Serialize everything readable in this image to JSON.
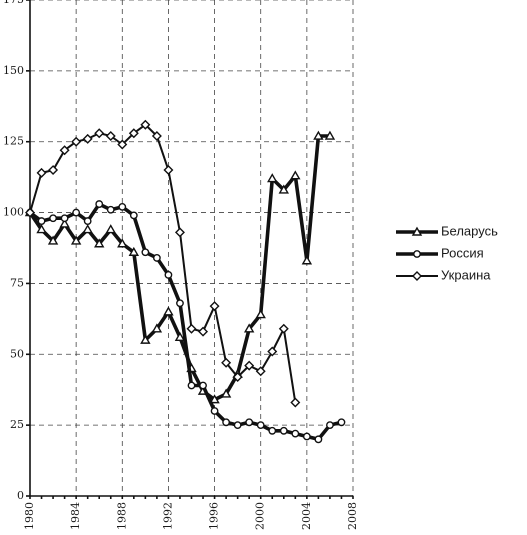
{
  "chart_data": {
    "type": "line",
    "title": "",
    "xlabel": "",
    "ylabel": "",
    "xlim": [
      1980,
      2008
    ],
    "ylim": [
      0,
      175
    ],
    "x_ticks": [
      1980,
      1984,
      1988,
      1992,
      1996,
      2000,
      2004,
      2008
    ],
    "y_ticks": [
      0,
      25,
      50,
      75,
      100,
      125,
      150,
      175
    ],
    "y_tick_labels": [
      "0",
      "25",
      "50",
      "75",
      "100",
      "125",
      "150",
      "175"
    ],
    "grid": "dashed",
    "legend_position": "right",
    "series": [
      {
        "name": "Беларусь",
        "marker": "triangle",
        "x": [
          1980,
          1981,
          1982,
          1983,
          1984,
          1985,
          1986,
          1987,
          1988,
          1989,
          1990,
          1991,
          1992,
          1993,
          1994,
          1995,
          1996,
          1997,
          1998,
          1999,
          2000,
          2001,
          2002,
          2003,
          2004,
          2005,
          2006
        ],
        "values": [
          100,
          94,
          90,
          96,
          90,
          94,
          89,
          94,
          89,
          86,
          55,
          59,
          65,
          56,
          45,
          37,
          34,
          36,
          43,
          59,
          64,
          112,
          108,
          113,
          83,
          127,
          127
        ]
      },
      {
        "name": "Россия",
        "marker": "circle",
        "x": [
          1980,
          1981,
          1982,
          1983,
          1984,
          1985,
          1986,
          1987,
          1988,
          1989,
          1990,
          1991,
          1992,
          1993,
          1994,
          1995,
          1996,
          1997,
          1998,
          1999,
          2000,
          2001,
          2002,
          2003,
          2004,
          2005,
          2006,
          2007
        ],
        "values": [
          100,
          97,
          98,
          98,
          100,
          97,
          103,
          101,
          102,
          99,
          86,
          84,
          78,
          68,
          39,
          39,
          30,
          26,
          25,
          26,
          25,
          23,
          23,
          22,
          21,
          20,
          25,
          26
        ]
      },
      {
        "name": "Украина",
        "marker": "diamond",
        "x": [
          1980,
          1981,
          1982,
          1983,
          1984,
          1985,
          1986,
          1987,
          1988,
          1989,
          1990,
          1991,
          1992,
          1993,
          1994,
          1995,
          1996,
          1997,
          1998,
          1999,
          2000,
          2001,
          2002,
          2003
        ],
        "values": [
          100,
          114,
          115,
          122,
          125,
          126,
          128,
          127,
          124,
          128,
          131,
          127,
          115,
          93,
          59,
          58,
          67,
          47,
          42,
          46,
          44,
          51,
          59,
          33
        ]
      }
    ]
  }
}
